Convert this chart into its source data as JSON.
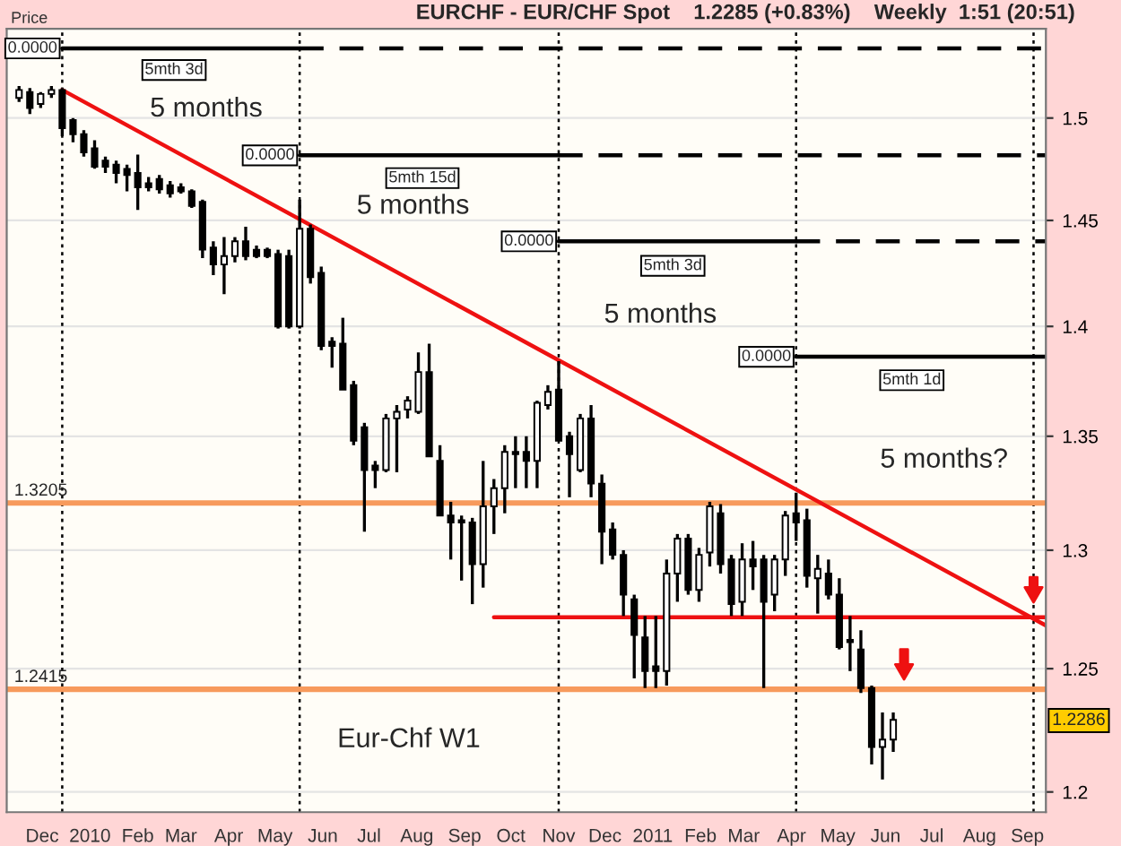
{
  "chart_data": {
    "type": "candlestick",
    "title": "EURCHF - EUR/CHF Spot    1.2285 (+0.83%)    Weekly  1:51 (20:51)",
    "ylabel": "Price",
    "x": [
      "2009-11-16",
      "2009-11-23",
      "2009-11-30",
      "2009-12-07",
      "2009-12-14",
      "2009-12-21",
      "2009-12-28",
      "2010-01-04",
      "2010-01-11",
      "2010-01-18",
      "2010-01-25",
      "2010-02-01",
      "2010-02-08",
      "2010-02-15",
      "2010-02-22",
      "2010-03-01",
      "2010-03-08",
      "2010-03-15",
      "2010-03-22",
      "2010-03-29",
      "2010-04-05",
      "2010-04-12",
      "2010-04-19",
      "2010-04-26",
      "2010-05-03",
      "2010-05-10",
      "2010-05-17",
      "2010-05-24",
      "2010-05-31",
      "2010-06-07",
      "2010-06-14",
      "2010-06-21",
      "2010-06-28",
      "2010-07-05",
      "2010-07-12",
      "2010-07-19",
      "2010-07-26",
      "2010-08-02",
      "2010-08-09",
      "2010-08-16",
      "2010-08-23",
      "2010-08-30",
      "2010-09-06",
      "2010-09-13",
      "2010-09-20",
      "2010-09-27",
      "2010-10-04",
      "2010-10-11",
      "2010-10-18",
      "2010-10-25",
      "2010-11-01",
      "2010-11-08",
      "2010-11-15",
      "2010-11-22",
      "2010-11-29",
      "2010-12-06",
      "2010-12-13",
      "2010-12-20",
      "2010-12-27",
      "2011-01-03",
      "2011-01-10",
      "2011-01-17",
      "2011-01-24",
      "2011-01-31",
      "2011-02-07",
      "2011-02-14",
      "2011-02-21",
      "2011-02-28",
      "2011-03-07",
      "2011-03-14",
      "2011-03-21",
      "2011-03-28",
      "2011-04-04",
      "2011-04-11",
      "2011-04-18",
      "2011-04-25",
      "2011-05-02",
      "2011-05-09",
      "2011-05-16",
      "2011-05-23",
      "2011-05-30",
      "2011-06-06"
    ],
    "ohlc": [
      [
        1.51,
        1.516,
        1.508,
        1.514
      ],
      [
        1.513,
        1.515,
        1.502,
        1.505
      ],
      [
        1.507,
        1.513,
        1.505,
        1.512
      ],
      [
        1.512,
        1.516,
        1.51,
        1.514
      ],
      [
        1.514,
        1.515,
        1.491,
        1.495
      ],
      [
        1.499,
        1.5,
        1.488,
        1.492
      ],
      [
        1.492,
        1.494,
        1.481,
        1.483
      ],
      [
        1.485,
        1.489,
        1.475,
        1.476
      ],
      [
        1.479,
        1.481,
        1.473,
        1.476
      ],
      [
        1.477,
        1.479,
        1.468,
        1.473
      ],
      [
        1.475,
        1.477,
        1.464,
        1.472
      ],
      [
        1.473,
        1.482,
        1.455,
        1.466
      ],
      [
        1.468,
        1.471,
        1.464,
        1.466
      ],
      [
        1.47,
        1.472,
        1.463,
        1.465
      ],
      [
        1.467,
        1.469,
        1.461,
        1.463
      ],
      [
        1.466,
        1.468,
        1.463,
        1.464
      ],
      [
        1.464,
        1.465,
        1.456,
        1.457
      ],
      [
        1.459,
        1.46,
        1.432,
        1.436
      ],
      [
        1.437,
        1.44,
        1.424,
        1.429
      ],
      [
        1.429,
        1.442,
        1.415,
        1.433
      ],
      [
        1.433,
        1.442,
        1.43,
        1.44
      ],
      [
        1.44,
        1.447,
        1.431,
        1.433
      ],
      [
        1.436,
        1.438,
        1.432,
        1.433
      ],
      [
        1.436,
        1.437,
        1.432,
        1.433
      ],
      [
        1.434,
        1.436,
        1.399,
        1.4
      ],
      [
        1.433,
        1.436,
        1.399,
        1.4
      ],
      [
        1.4,
        1.46,
        1.399,
        1.446
      ],
      [
        1.446,
        1.448,
        1.42,
        1.423
      ],
      [
        1.425,
        1.428,
        1.389,
        1.391
      ],
      [
        1.393,
        1.395,
        1.381,
        1.391
      ],
      [
        1.392,
        1.404,
        1.371,
        1.371
      ],
      [
        1.373,
        1.375,
        1.346,
        1.348
      ],
      [
        1.354,
        1.356,
        1.308,
        1.335
      ],
      [
        1.337,
        1.339,
        1.327,
        1.335
      ],
      [
        1.335,
        1.36,
        1.334,
        1.358
      ],
      [
        1.358,
        1.364,
        1.334,
        1.361
      ],
      [
        1.362,
        1.368,
        1.358,
        1.366
      ],
      [
        1.361,
        1.388,
        1.36,
        1.379
      ],
      [
        1.379,
        1.392,
        1.341,
        1.341
      ],
      [
        1.339,
        1.346,
        1.315,
        1.315
      ],
      [
        1.315,
        1.321,
        1.296,
        1.312
      ],
      [
        1.313,
        1.315,
        1.287,
        1.312
      ],
      [
        1.312,
        1.314,
        1.277,
        1.294
      ],
      [
        1.294,
        1.339,
        1.284,
        1.319
      ],
      [
        1.319,
        1.331,
        1.307,
        1.327
      ],
      [
        1.327,
        1.346,
        1.316,
        1.343
      ],
      [
        1.343,
        1.35,
        1.327,
        1.342
      ],
      [
        1.343,
        1.35,
        1.327,
        1.339
      ],
      [
        1.339,
        1.366,
        1.327,
        1.365
      ],
      [
        1.364,
        1.373,
        1.362,
        1.37
      ],
      [
        1.371,
        1.384,
        1.348,
        1.348
      ],
      [
        1.35,
        1.352,
        1.323,
        1.342
      ],
      [
        1.335,
        1.36,
        1.334,
        1.358
      ],
      [
        1.358,
        1.364,
        1.323,
        1.329
      ],
      [
        1.329,
        1.333,
        1.294,
        1.308
      ],
      [
        1.309,
        1.312,
        1.296,
        1.298
      ],
      [
        1.298,
        1.3,
        1.272,
        1.281
      ],
      [
        1.279,
        1.281,
        1.246,
        1.264
      ],
      [
        1.263,
        1.272,
        1.242,
        1.249
      ],
      [
        1.251,
        1.272,
        1.242,
        1.249
      ],
      [
        1.249,
        1.296,
        1.243,
        1.29
      ],
      [
        1.29,
        1.307,
        1.278,
        1.305
      ],
      [
        1.305,
        1.307,
        1.281,
        1.283
      ],
      [
        1.283,
        1.301,
        1.278,
        1.298
      ],
      [
        1.299,
        1.321,
        1.293,
        1.319
      ],
      [
        1.316,
        1.32,
        1.29,
        1.294
      ],
      [
        1.296,
        1.298,
        1.272,
        1.277
      ],
      [
        1.278,
        1.303,
        1.272,
        1.296
      ],
      [
        1.296,
        1.304,
        1.283,
        1.293
      ],
      [
        1.296,
        1.298,
        1.242,
        1.278
      ],
      [
        1.281,
        1.298,
        1.274,
        1.296
      ],
      [
        1.296,
        1.317,
        1.289,
        1.315
      ],
      [
        1.316,
        1.325,
        1.304,
        1.312
      ],
      [
        1.313,
        1.318,
        1.284,
        1.289
      ],
      [
        1.288,
        1.298,
        1.273,
        1.292
      ],
      [
        1.29,
        1.296,
        1.279,
        1.281
      ],
      [
        1.281,
        1.288,
        1.258,
        1.259
      ],
      [
        1.262,
        1.272,
        1.249,
        1.261
      ],
      [
        1.258,
        1.266,
        1.24,
        1.242
      ],
      [
        1.242,
        1.243,
        1.211,
        1.218
      ],
      [
        1.218,
        1.232,
        1.205,
        1.221
      ],
      [
        1.221,
        1.232,
        1.216,
        1.229
      ]
    ],
    "series": [
      {
        "type": "line",
        "color": "#ee1111",
        "x": [
          "2009-12-14",
          "2011-09-13"
        ],
        "values": [
          1.514,
          1.268
        ]
      },
      {
        "type": "line",
        "color": "#ee1111",
        "x": [
          "2010-09-20",
          "2011-09-13"
        ],
        "values": [
          1.2715,
          1.2715
        ]
      },
      {
        "type": "line",
        "color": "#000000",
        "line_style": "solid",
        "x": [
          "2009-12-14",
          "2010-05-17"
        ],
        "values": [
          1.535,
          1.535
        ]
      },
      {
        "type": "line",
        "color": "#000000",
        "line_style": "dashed",
        "x": [
          "2010-05-17",
          "2011-09-13"
        ],
        "values": [
          1.535,
          1.535
        ]
      },
      {
        "type": "line",
        "color": "#000000",
        "line_style": "solid",
        "x": [
          "2010-05-17",
          "2010-11-01"
        ],
        "values": [
          1.4816,
          1.4816
        ]
      },
      {
        "type": "line",
        "color": "#000000",
        "line_style": "dashed",
        "x": [
          "2010-11-01",
          "2011-09-13"
        ],
        "values": [
          1.4816,
          1.4816
        ]
      },
      {
        "type": "line",
        "color": "#000000",
        "line_style": "solid",
        "x": [
          "2010-11-01",
          "2011-04-04"
        ],
        "values": [
          1.44,
          1.44
        ]
      },
      {
        "type": "line",
        "color": "#000000",
        "line_style": "dashed",
        "x": [
          "2011-04-04",
          "2011-09-13"
        ],
        "values": [
          1.44,
          1.44
        ]
      },
      {
        "type": "line",
        "color": "#000000",
        "line_style": "solid",
        "x": [
          "2011-04-04",
          "2011-09-13"
        ],
        "values": [
          1.386,
          1.386
        ]
      }
    ],
    "ref_lines": [
      {
        "axis": "x",
        "value": "2009-12-14",
        "color": "#000000",
        "line_style": "dotted"
      },
      {
        "axis": "x",
        "value": "2010-05-17",
        "color": "#000000",
        "line_style": "dotted"
      },
      {
        "axis": "x",
        "value": "2010-11-01",
        "color": "#000000",
        "line_style": "dotted"
      },
      {
        "axis": "x",
        "value": "2011-04-04",
        "color": "#000000",
        "line_style": "dotted"
      },
      {
        "axis": "x",
        "value": "2011-09-05",
        "color": "#000000",
        "line_style": "dotted"
      },
      {
        "axis": "y",
        "value": 1.3205,
        "label": "1.3205",
        "color": "#f79a5c",
        "line_style": "solid"
      },
      {
        "axis": "y",
        "value": 1.2415,
        "label": "1.2415",
        "color": "#f79a5c",
        "line_style": "solid"
      }
    ],
    "annotations": [
      "5 months",
      "5 months",
      "5 months",
      "5 months?",
      "Eur-Chf W1",
      "5mth 3d",
      "5mth 15d",
      "5mth 3d",
      "5mth 1d",
      "1.2286",
      {
        "text": "0.0000",
        "x": "2009-12-14",
        "y": 1.535
      },
      {
        "text": "0.0000",
        "x": "2010-05-17",
        "y": 1.4816
      },
      {
        "text": "0.0000",
        "x": "2010-11-01",
        "y": 1.44
      },
      {
        "text": "0.0000",
        "x": "2011-04-04",
        "y": 1.386
      }
    ],
    "xlim": [
      "2009-11-08",
      "2011-09-13"
    ],
    "xticks": [
      {
        "value": "2009-12-01",
        "label": "Dec"
      },
      {
        "value": "2010-01-01",
        "label": "2010"
      },
      {
        "value": "2010-02-01",
        "label": "Feb"
      },
      {
        "value": "2010-03-01",
        "label": "Mar"
      },
      {
        "value": "2010-04-01",
        "label": "Apr"
      },
      {
        "value": "2010-05-01",
        "label": "May"
      },
      {
        "value": "2010-06-01",
        "label": "Jun"
      },
      {
        "value": "2010-07-01",
        "label": "Jul"
      },
      {
        "value": "2010-08-01",
        "label": "Aug"
      },
      {
        "value": "2010-09-01",
        "label": "Sep"
      },
      {
        "value": "2010-10-01",
        "label": "Oct"
      },
      {
        "value": "2010-11-01",
        "label": "Nov"
      },
      {
        "value": "2010-12-01",
        "label": "Dec"
      },
      {
        "value": "2011-01-01",
        "label": "2011"
      },
      {
        "value": "2011-02-01",
        "label": "Feb"
      },
      {
        "value": "2011-03-01",
        "label": "Mar"
      },
      {
        "value": "2011-04-01",
        "label": "Apr"
      },
      {
        "value": "2011-05-01",
        "label": "May"
      },
      {
        "value": "2011-06-01",
        "label": "Jun"
      },
      {
        "value": "2011-07-01",
        "label": "Jul"
      },
      {
        "value": "2011-08-01",
        "label": "Aug"
      },
      {
        "value": "2011-09-01",
        "label": "Sep"
      }
    ],
    "ylim": [
      1.192,
      1.545
    ],
    "yticks": [
      1.2,
      1.25,
      1.3,
      1.35,
      1.4,
      1.45,
      1.5
    ],
    "log": true,
    "grid": "y"
  }
}
